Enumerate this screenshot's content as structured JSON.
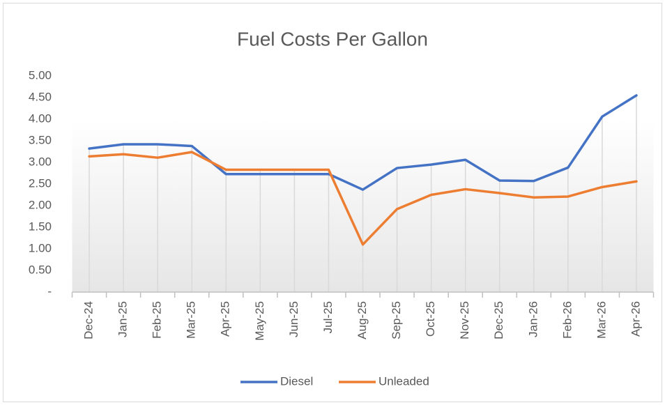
{
  "chart_data": {
    "type": "line",
    "title": "Fuel Costs Per Gallon",
    "categories": [
      "Dec-24",
      "Jan-25",
      "Feb-25",
      "Mar-25",
      "Apr-25",
      "May-25",
      "Jun-25",
      "Jul-25",
      "Aug-25",
      "Sep-25",
      "Oct-25",
      "Nov-25",
      "Dec-25",
      "Jan-26",
      "Feb-26",
      "Mar-26",
      "Apr-26"
    ],
    "series": [
      {
        "name": "Diesel",
        "color": "#4472c4",
        "values": [
          3.32,
          3.42,
          3.42,
          3.38,
          2.73,
          2.73,
          2.73,
          2.73,
          2.37,
          2.87,
          2.95,
          3.06,
          2.58,
          2.57,
          2.88,
          4.06,
          4.55
        ]
      },
      {
        "name": "Unleaded",
        "color": "#ed7d31",
        "values": [
          3.14,
          3.19,
          3.11,
          3.24,
          2.83,
          2.83,
          2.83,
          2.83,
          1.1,
          1.92,
          2.25,
          2.38,
          2.29,
          2.19,
          2.21,
          2.43,
          2.56
        ]
      }
    ],
    "ylim": [
      0,
      5
    ],
    "yticks": [
      {
        "value": 0,
        "label": "-"
      },
      {
        "value": 0.5,
        "label": "0.50"
      },
      {
        "value": 1,
        "label": "1.00"
      },
      {
        "value": 1.5,
        "label": "1.50"
      },
      {
        "value": 2,
        "label": "2.00"
      },
      {
        "value": 2.5,
        "label": "2.50"
      },
      {
        "value": 3,
        "label": "3.00"
      },
      {
        "value": 3.5,
        "label": "3.50"
      },
      {
        "value": 4,
        "label": "4.00"
      },
      {
        "value": 4.5,
        "label": "4.50"
      },
      {
        "value": 5,
        "label": "5.00"
      }
    ],
    "legend": "bottom",
    "drop_lines": true
  }
}
